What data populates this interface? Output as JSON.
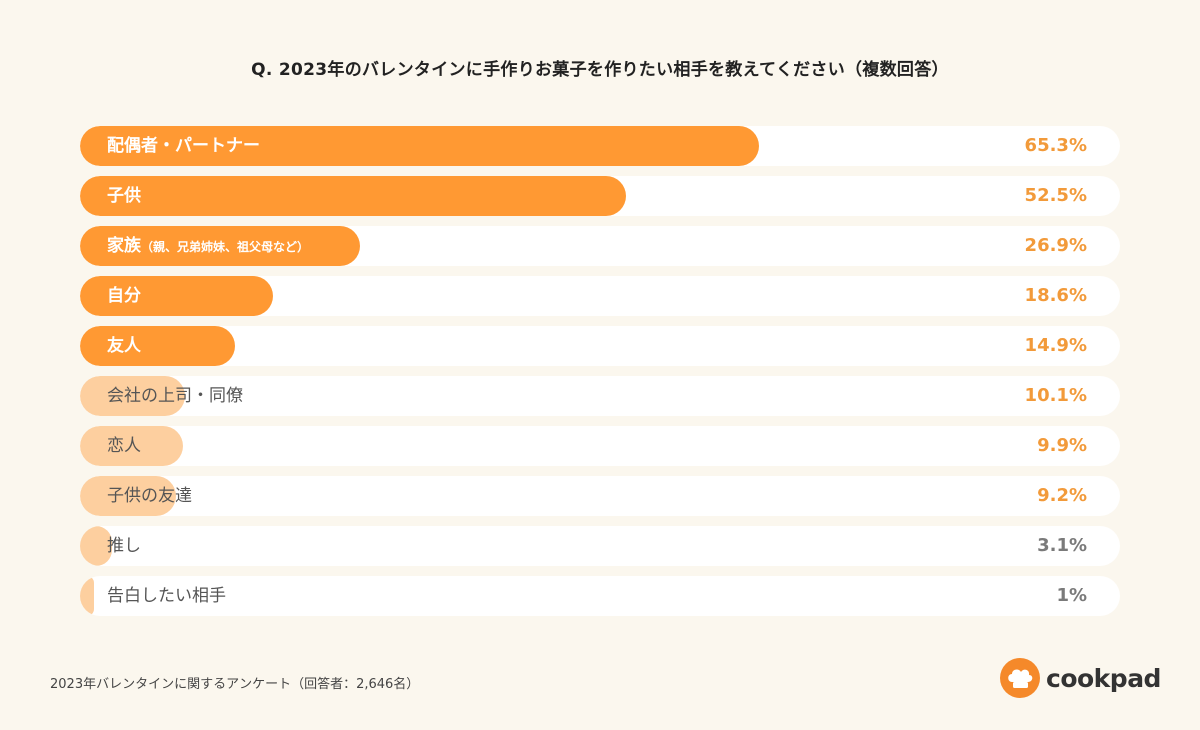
{
  "title": "Q. 2023年のバレンタインに手作りお菓子を作りたい相手を教えてください（複数回答）",
  "footnote": "2023年バレンタインに関するアンケート（回答者：2,646名）",
  "logo_text": "cookpad",
  "colors": {
    "strong": "#ff9933",
    "light": "#fdcf9f",
    "value_orange": "#f29a3a",
    "value_gray": "#7a7a7a",
    "track": "#ffffff",
    "background": "#fbf7ee"
  },
  "chart_data": {
    "type": "bar",
    "orientation": "horizontal",
    "xlim": [
      0,
      100
    ],
    "rows": [
      {
        "label": "配偶者・パートナー",
        "sub": "",
        "value": 65.3,
        "display": "65.3%",
        "tier": "strong"
      },
      {
        "label": "子供",
        "sub": "",
        "value": 52.5,
        "display": "52.5%",
        "tier": "strong"
      },
      {
        "label": "家族",
        "sub": "（親、兄弟姉妹、祖父母など）",
        "value": 26.9,
        "display": "26.9%",
        "tier": "strong"
      },
      {
        "label": "自分",
        "sub": "",
        "value": 18.6,
        "display": "18.6%",
        "tier": "strong"
      },
      {
        "label": "友人",
        "sub": "",
        "value": 14.9,
        "display": "14.9%",
        "tier": "strong"
      },
      {
        "label": "会社の上司・同僚",
        "sub": "",
        "value": 10.1,
        "display": "10.1%",
        "tier": "light"
      },
      {
        "label": "恋人",
        "sub": "",
        "value": 9.9,
        "display": "9.9%",
        "tier": "light"
      },
      {
        "label": "子供の友達",
        "sub": "",
        "value": 9.2,
        "display": "9.2%",
        "tier": "light"
      },
      {
        "label": "推し",
        "sub": "",
        "value": 3.1,
        "display": "3.1%",
        "tier": "light"
      },
      {
        "label": "告白したい相手",
        "sub": "",
        "value": 1,
        "display": "1%",
        "tier": "light"
      }
    ]
  }
}
